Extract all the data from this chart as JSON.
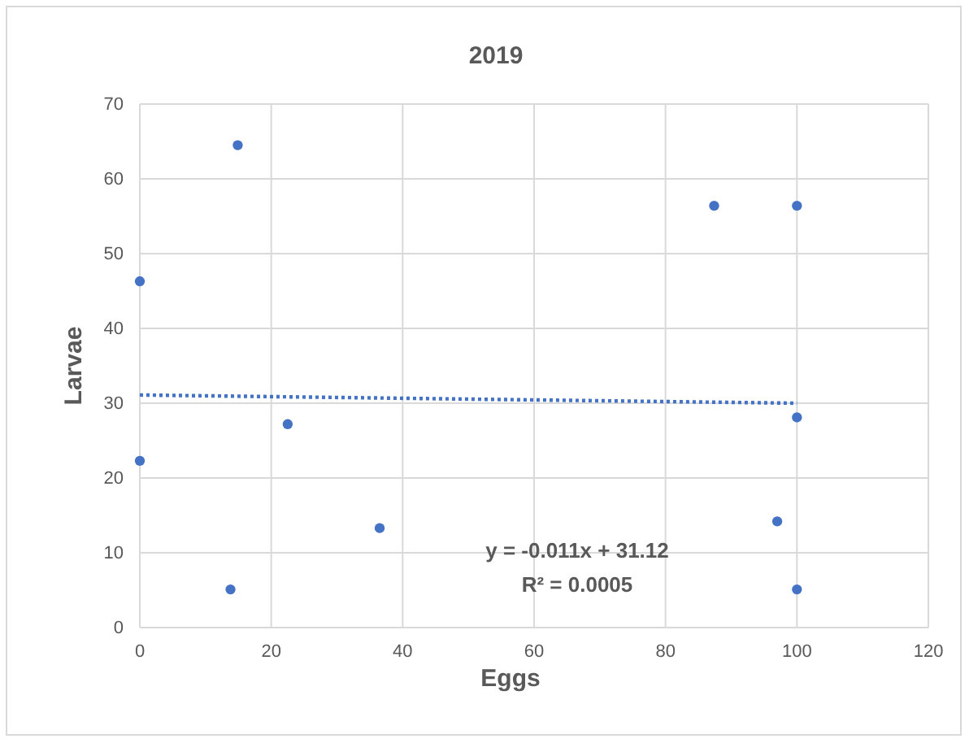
{
  "chart_data": {
    "type": "scatter",
    "title": "2019",
    "xlabel": "Eggs",
    "ylabel": "Larvae",
    "xlim": [
      0,
      120
    ],
    "xticks": [
      0,
      20,
      40,
      60,
      80,
      100,
      120
    ],
    "ylim": [
      0,
      70
    ],
    "yticks": [
      0,
      10,
      20,
      30,
      40,
      50,
      60,
      70
    ],
    "grid": true,
    "series": [
      {
        "color": "#4472c4",
        "marker": "circle",
        "x": [
          0,
          0,
          14.9,
          13.8,
          22.5,
          36.5,
          87.4,
          100,
          100,
          97,
          100
        ],
        "values": [
          46.3,
          22.3,
          64.5,
          5.1,
          27.2,
          13.3,
          56.4,
          56.4,
          28.1,
          14.2,
          5.1
        ]
      },
      {
        "type": "line",
        "color": "#4472c4",
        "line_style": "dotted",
        "marker": "none",
        "x": [
          0,
          100
        ],
        "values": [
          31.1,
          30.0
        ]
      }
    ],
    "annotations": [
      "y = -0.011x + 31.12",
      "R² = 0.0005"
    ]
  }
}
